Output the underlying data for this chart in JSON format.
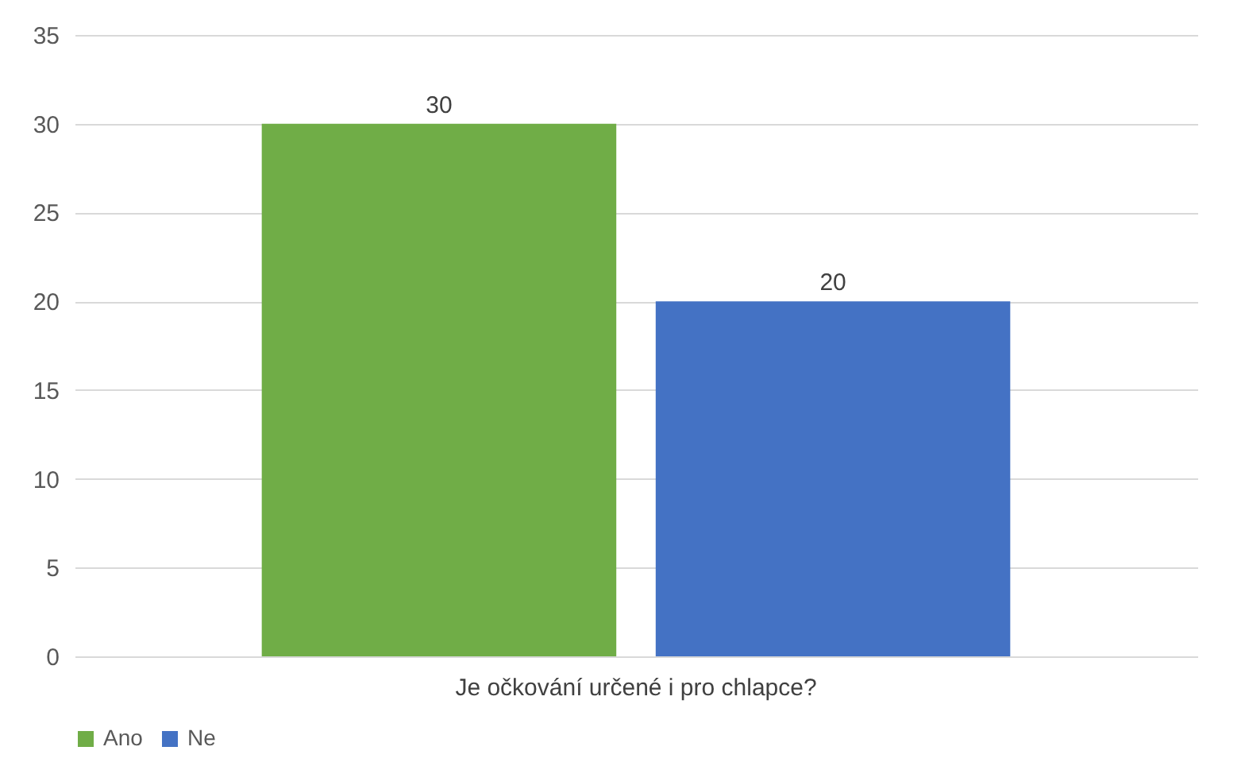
{
  "chart_data": {
    "type": "bar",
    "categories": [
      "Je očkování určené i pro chlapce?"
    ],
    "series": [
      {
        "name": "Ano",
        "color": "#70ad47",
        "values": [
          30
        ]
      },
      {
        "name": "Ne",
        "color": "#4472c4",
        "values": [
          20
        ]
      }
    ],
    "ylim": [
      0,
      35
    ],
    "yticks": [
      0,
      5,
      10,
      15,
      20,
      25,
      30,
      35
    ],
    "grid": "y",
    "legend": "bottom",
    "data_labels": true
  }
}
